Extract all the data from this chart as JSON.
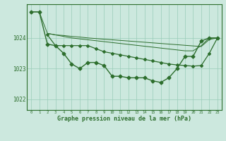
{
  "background_color": "#cce8de",
  "grid_color": "#99ccb8",
  "line_color": "#2d6e2d",
  "title": "Graphe pression niveau de la mer (hPa)",
  "xlim": [
    -0.5,
    23.5
  ],
  "ylim": [
    1021.65,
    1025.1
  ],
  "yticks": [
    1022,
    1023,
    1024
  ],
  "xticks": [
    0,
    1,
    2,
    3,
    4,
    5,
    6,
    7,
    8,
    9,
    10,
    11,
    12,
    13,
    14,
    15,
    16,
    17,
    18,
    19,
    20,
    21,
    22,
    23
  ],
  "line_main": {
    "x": [
      0,
      1,
      2,
      3,
      4,
      5,
      6,
      7,
      8,
      9,
      10,
      11,
      12,
      13,
      14,
      15,
      16,
      17,
      18,
      19,
      20,
      21,
      22,
      23
    ],
    "y": [
      1024.85,
      1024.85,
      1023.8,
      1023.75,
      1023.5,
      1023.15,
      1023.0,
      1023.2,
      1023.2,
      1023.1,
      1022.75,
      1022.75,
      1022.7,
      1022.7,
      1022.7,
      1022.6,
      1022.55,
      1022.7,
      1023.0,
      1023.4,
      1023.4,
      1023.9,
      1024.0,
      1024.0
    ]
  },
  "line_flat1": {
    "x": [
      0,
      1,
      2,
      3,
      4,
      5,
      6,
      7,
      8,
      9,
      10,
      11,
      12,
      13,
      14,
      15,
      16,
      17,
      18,
      19,
      20,
      21,
      22,
      23
    ],
    "y": [
      1024.85,
      1024.85,
      1024.15,
      1024.1,
      1024.05,
      1024.0,
      1023.97,
      1023.94,
      1023.91,
      1023.88,
      1023.85,
      1023.82,
      1023.79,
      1023.76,
      1023.73,
      1023.7,
      1023.67,
      1023.64,
      1023.61,
      1023.58,
      1023.58,
      1023.75,
      1024.0,
      1024.0
    ]
  },
  "line_flat2": {
    "x": [
      2,
      3,
      4,
      5,
      6,
      7,
      8,
      9,
      10,
      11,
      12,
      13,
      14,
      15,
      16,
      17,
      18,
      19,
      20,
      21,
      22,
      23
    ],
    "y": [
      1024.15,
      1024.1,
      1024.08,
      1024.05,
      1024.03,
      1024.0,
      1023.98,
      1023.96,
      1023.94,
      1023.92,
      1023.9,
      1023.88,
      1023.86,
      1023.84,
      1023.82,
      1023.8,
      1023.78,
      1023.76,
      1023.74,
      1023.72,
      1023.95,
      1024.0
    ]
  },
  "line_second": {
    "x": [
      2,
      3,
      4,
      5,
      6,
      7,
      8,
      9,
      10,
      11,
      12,
      13,
      14,
      15,
      16,
      17,
      18,
      19,
      20,
      21,
      22,
      23
    ],
    "y": [
      1024.1,
      1023.75,
      1023.75,
      1023.75,
      1023.75,
      1023.75,
      1023.65,
      1023.55,
      1023.5,
      1023.45,
      1023.4,
      1023.35,
      1023.3,
      1023.25,
      1023.2,
      1023.15,
      1023.12,
      1023.1,
      1023.08,
      1023.1,
      1023.5,
      1024.0
    ]
  }
}
